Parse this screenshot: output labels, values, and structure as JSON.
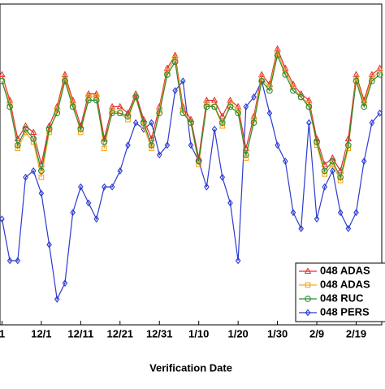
{
  "chart_data": {
    "type": "line",
    "x_label": "Verification Date",
    "x": [
      -10,
      -8,
      -6,
      -4,
      -2,
      0,
      2,
      4,
      6,
      8,
      10,
      12,
      14,
      16,
      18,
      20,
      22,
      24,
      26,
      28,
      30,
      32,
      34,
      36,
      38,
      40,
      42,
      44,
      46,
      48,
      50,
      52,
      54,
      56,
      58,
      60,
      62,
      64,
      66,
      68,
      70,
      72,
      74,
      76,
      78,
      80,
      82,
      84,
      86
    ],
    "xlim": [
      -10.5,
      86.5
    ],
    "xticks": [
      {
        "value": -10,
        "label": "1"
      },
      {
        "value": 0,
        "label": "12/1"
      },
      {
        "value": 10,
        "label": "12/11"
      },
      {
        "value": 20,
        "label": "12/21"
      },
      {
        "value": 30,
        "label": "12/31"
      },
      {
        "value": 40,
        "label": "1/10"
      },
      {
        "value": 50,
        "label": "1/20"
      },
      {
        "value": 60,
        "label": "1/30"
      },
      {
        "value": 70,
        "label": "2/9"
      },
      {
        "value": 80,
        "label": "2/19"
      }
    ],
    "ylim": [
      0,
      100
    ],
    "legend": "lower-right",
    "series": [
      {
        "name": "048 ADAS",
        "color": "#e03030",
        "marker": "triangle",
        "values": [
          78,
          70,
          58,
          62,
          60,
          50,
          62,
          68,
          78,
          70,
          62,
          72,
          72,
          58,
          68,
          68,
          66,
          72,
          64,
          58,
          68,
          80,
          84,
          68,
          64,
          52,
          70,
          70,
          65,
          70,
          68,
          55,
          65,
          78,
          75,
          86,
          80,
          75,
          72,
          70,
          58,
          50,
          52,
          48,
          58,
          78,
          70,
          78,
          80
        ]
      },
      {
        "name": "048 ADAS",
        "color": "#f5a623",
        "marker": "square",
        "values": [
          76,
          69,
          55,
          60,
          57,
          46,
          60,
          67,
          77,
          69,
          60,
          71,
          71,
          55,
          67,
          66,
          64,
          71,
          62,
          55,
          67,
          79,
          83,
          67,
          63,
          50,
          69,
          68,
          62,
          69,
          67,
          52,
          64,
          77,
          74,
          85,
          79,
          74,
          71,
          69,
          56,
          47,
          50,
          45,
          55,
          77,
          69,
          77,
          79
        ]
      },
      {
        "name": "048 RUC",
        "color": "#2e8b2e",
        "marker": "circle",
        "values": [
          76,
          68,
          56,
          61,
          58,
          48,
          61,
          66,
          76,
          68,
          61,
          70,
          70,
          57,
          66,
          66,
          65,
          71,
          63,
          56,
          66,
          78,
          82,
          66,
          63,
          51,
          68,
          68,
          63,
          68,
          66,
          53,
          63,
          76,
          73,
          84,
          78,
          73,
          71,
          68,
          57,
          48,
          51,
          46,
          56,
          76,
          68,
          76,
          78
        ]
      },
      {
        "name": "048 PERS",
        "color": "#2b3bd1",
        "marker": "diamond",
        "values": [
          33,
          20,
          20,
          46,
          48,
          41,
          25,
          8,
          13,
          35,
          43,
          38,
          33,
          43,
          43,
          48,
          56,
          63,
          61,
          63,
          53,
          56,
          73,
          76,
          56,
          51,
          43,
          61,
          46,
          38,
          20,
          68,
          71,
          76,
          66,
          56,
          51,
          35,
          30,
          63,
          33,
          43,
          48,
          35,
          30,
          35,
          51,
          63,
          66
        ]
      }
    ]
  }
}
